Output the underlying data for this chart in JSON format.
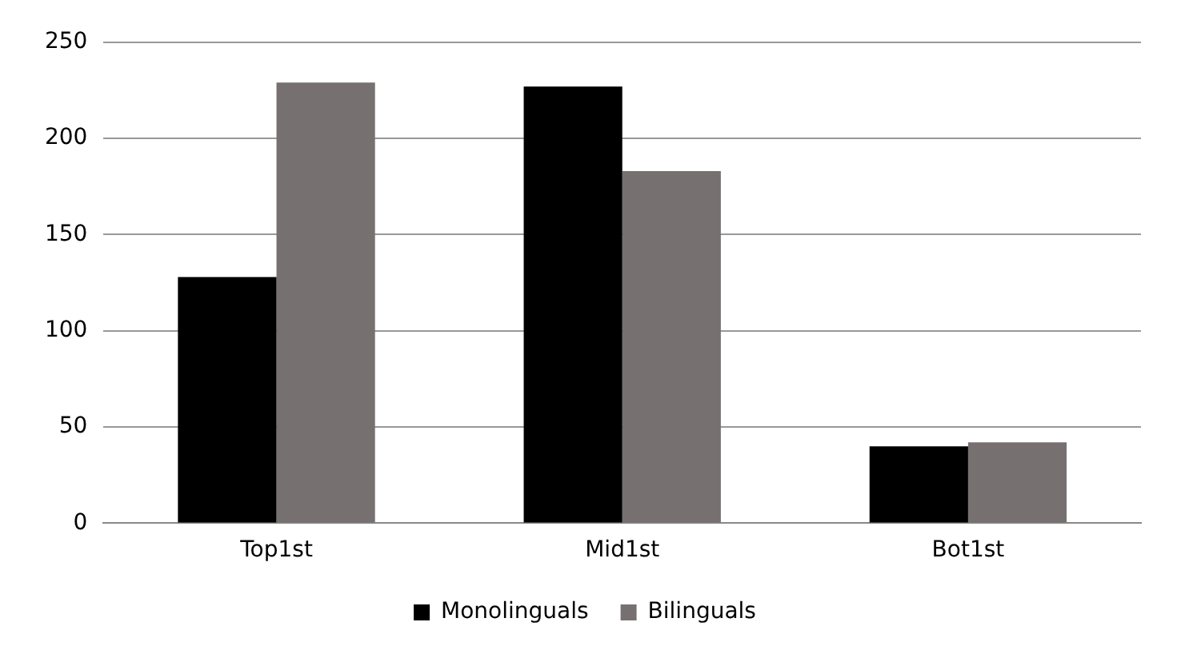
{
  "chart_data": {
    "type": "bar",
    "categories": [
      "Top1st",
      "Mid1st",
      "Bot1st"
    ],
    "series": [
      {
        "name": "Monolinguals",
        "color": "#000000",
        "values": [
          128,
          227,
          40
        ]
      },
      {
        "name": "Bilinguals",
        "color": "#767170",
        "values": [
          229,
          183,
          42
        ]
      }
    ],
    "ylim": [
      0,
      250
    ],
    "yticks": [
      0,
      50,
      100,
      150,
      200,
      250
    ],
    "grid": "y",
    "legend": "bottom"
  }
}
